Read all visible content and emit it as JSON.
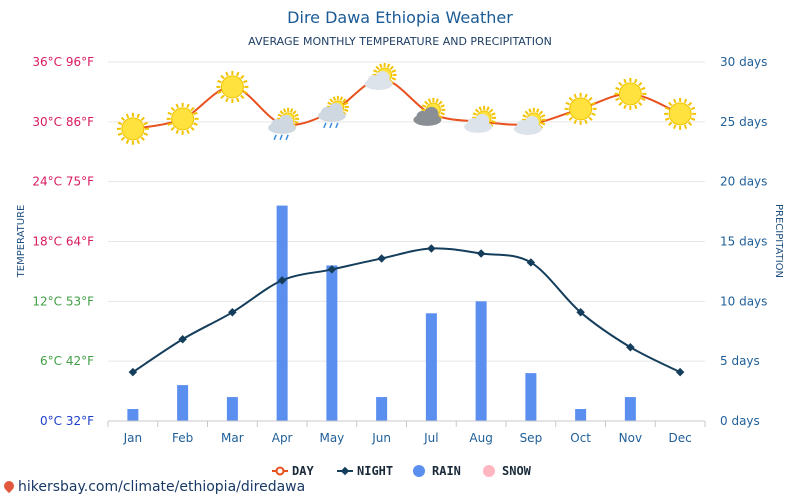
{
  "title": "Dire Dawa Ethiopia Weather",
  "subtitle": "AVERAGE MONTHLY TEMPERATURE AND PRECIPITATION",
  "footer": "hikersbay.com/climate/ethiopia/diredawa",
  "chart_data": {
    "type": "line+bar",
    "categories": [
      "Jan",
      "Feb",
      "Mar",
      "Apr",
      "May",
      "Jun",
      "Jul",
      "Aug",
      "Sep",
      "Oct",
      "Nov",
      "Dec"
    ],
    "left_axis": {
      "label": "TEMPERATURE",
      "ticks": [
        {
          "c": 36,
          "text": "36°C 96°F",
          "color": "#d81b60"
        },
        {
          "c": 30,
          "text": "30°C 86°F",
          "color": "#d81b60"
        },
        {
          "c": 24,
          "text": "24°C 75°F",
          "color": "#d81b60"
        },
        {
          "c": 18,
          "text": "18°C 64°F",
          "color": "#d81b60"
        },
        {
          "c": 12,
          "text": "12°C 53°F",
          "color": "#43a047"
        },
        {
          "c": 6,
          "text": "6°C 42°F",
          "color": "#43a047"
        },
        {
          "c": 0,
          "text": "0°C 32°F",
          "color": "#1e40c8"
        }
      ],
      "ylim": [
        0,
        36
      ]
    },
    "right_axis": {
      "label": "PRECIPITATION",
      "ticks": [
        "30 days",
        "25 days",
        "20 days",
        "15 days",
        "10 days",
        "5 days",
        "0 days"
      ],
      "ylim": [
        0,
        30
      ]
    },
    "series": [
      {
        "name": "DAY",
        "color": "#e8501e",
        "kind": "line",
        "unit": "°C",
        "values": [
          29.3,
          30.3,
          33.5,
          29.8,
          31.0,
          34.3,
          30.8,
          30.0,
          29.8,
          31.3,
          32.8,
          30.8
        ]
      },
      {
        "name": "NIGHT",
        "color": "#153e5c",
        "kind": "line",
        "unit": "°C",
        "values": [
          4.9,
          8.2,
          10.9,
          14.1,
          15.2,
          16.3,
          17.3,
          16.8,
          15.9,
          10.9,
          7.4,
          4.9
        ]
      },
      {
        "name": "RAIN",
        "color": "#5a8ff0",
        "kind": "bar",
        "unit": "days",
        "values": [
          1,
          3,
          2,
          18,
          13,
          2,
          9,
          10,
          4,
          1,
          2,
          0
        ]
      },
      {
        "name": "SNOW",
        "color": "#ffb6c1",
        "kind": "bar",
        "unit": "days",
        "values": [
          0,
          0,
          0,
          0,
          0,
          0,
          0,
          0,
          0,
          0,
          0,
          0
        ]
      }
    ],
    "weather_icons": [
      "sun",
      "sun",
      "sun",
      "cloud-rain",
      "cloud-rain",
      "sun-cloud",
      "sun-cloud-dark",
      "sun-cloud",
      "sun-cloud",
      "sun",
      "sun",
      "sun"
    ],
    "grid": true,
    "legend_position": "bottom"
  }
}
